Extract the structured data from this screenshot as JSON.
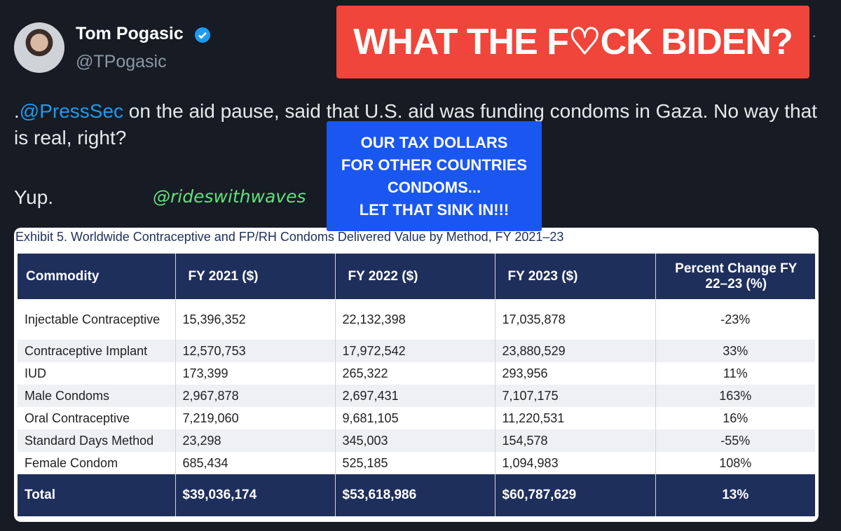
{
  "header": {
    "name": "Tom Pogasic",
    "handle": "@TPogasic"
  },
  "banner": "WHAT THE F♡CK BIDEN?",
  "tweet": {
    "prefix": ".",
    "mention": "@PressSec",
    "text": " on the aid pause, said that U.S. aid was funding condoms in Gaza. No way that is real, right?",
    "second": "Yup."
  },
  "watermark": "@rideswithwaves",
  "overlay": [
    "OUR TAX DOLLARS",
    "FOR OTHER COUNTRIES",
    "CONDOMS...",
    "LET THAT SINK IN!!!"
  ],
  "table": {
    "caption": "Exhibit 5. Worldwide Contraceptive and FP/RH Condoms Delivered Value by Method, FY 2021–23",
    "headers": [
      "Commodity",
      "FY 2021 ($)",
      "FY 2022 ($)",
      "FY 2023 ($)",
      "Percent Change FY 22–23 (%)"
    ],
    "rows": [
      [
        "Injectable Contraceptive",
        "15,396,352",
        "22,132,398",
        "17,035,878",
        "-23%"
      ],
      [
        "Contraceptive Implant",
        "12,570,753",
        "17,972,542",
        "23,880,529",
        "33%"
      ],
      [
        "IUD",
        "173,399",
        "265,322",
        "293,956",
        "11%"
      ],
      [
        "Male Condoms",
        "2,967,878",
        "2,697,431",
        "7,107,175",
        "163%"
      ],
      [
        "Oral Contraceptive",
        "7,219,060",
        "9,681,105",
        "11,220,531",
        "16%"
      ],
      [
        "Standard Days Method",
        "23,298",
        "345,003",
        "154,578",
        "-55%"
      ],
      [
        "Female Condom",
        "685,434",
        "525,185",
        "1,094,983",
        "108%"
      ]
    ],
    "total": [
      "Total",
      "$39,036,174",
      "$53,618,986",
      "$60,787,629",
      "13%"
    ]
  }
}
